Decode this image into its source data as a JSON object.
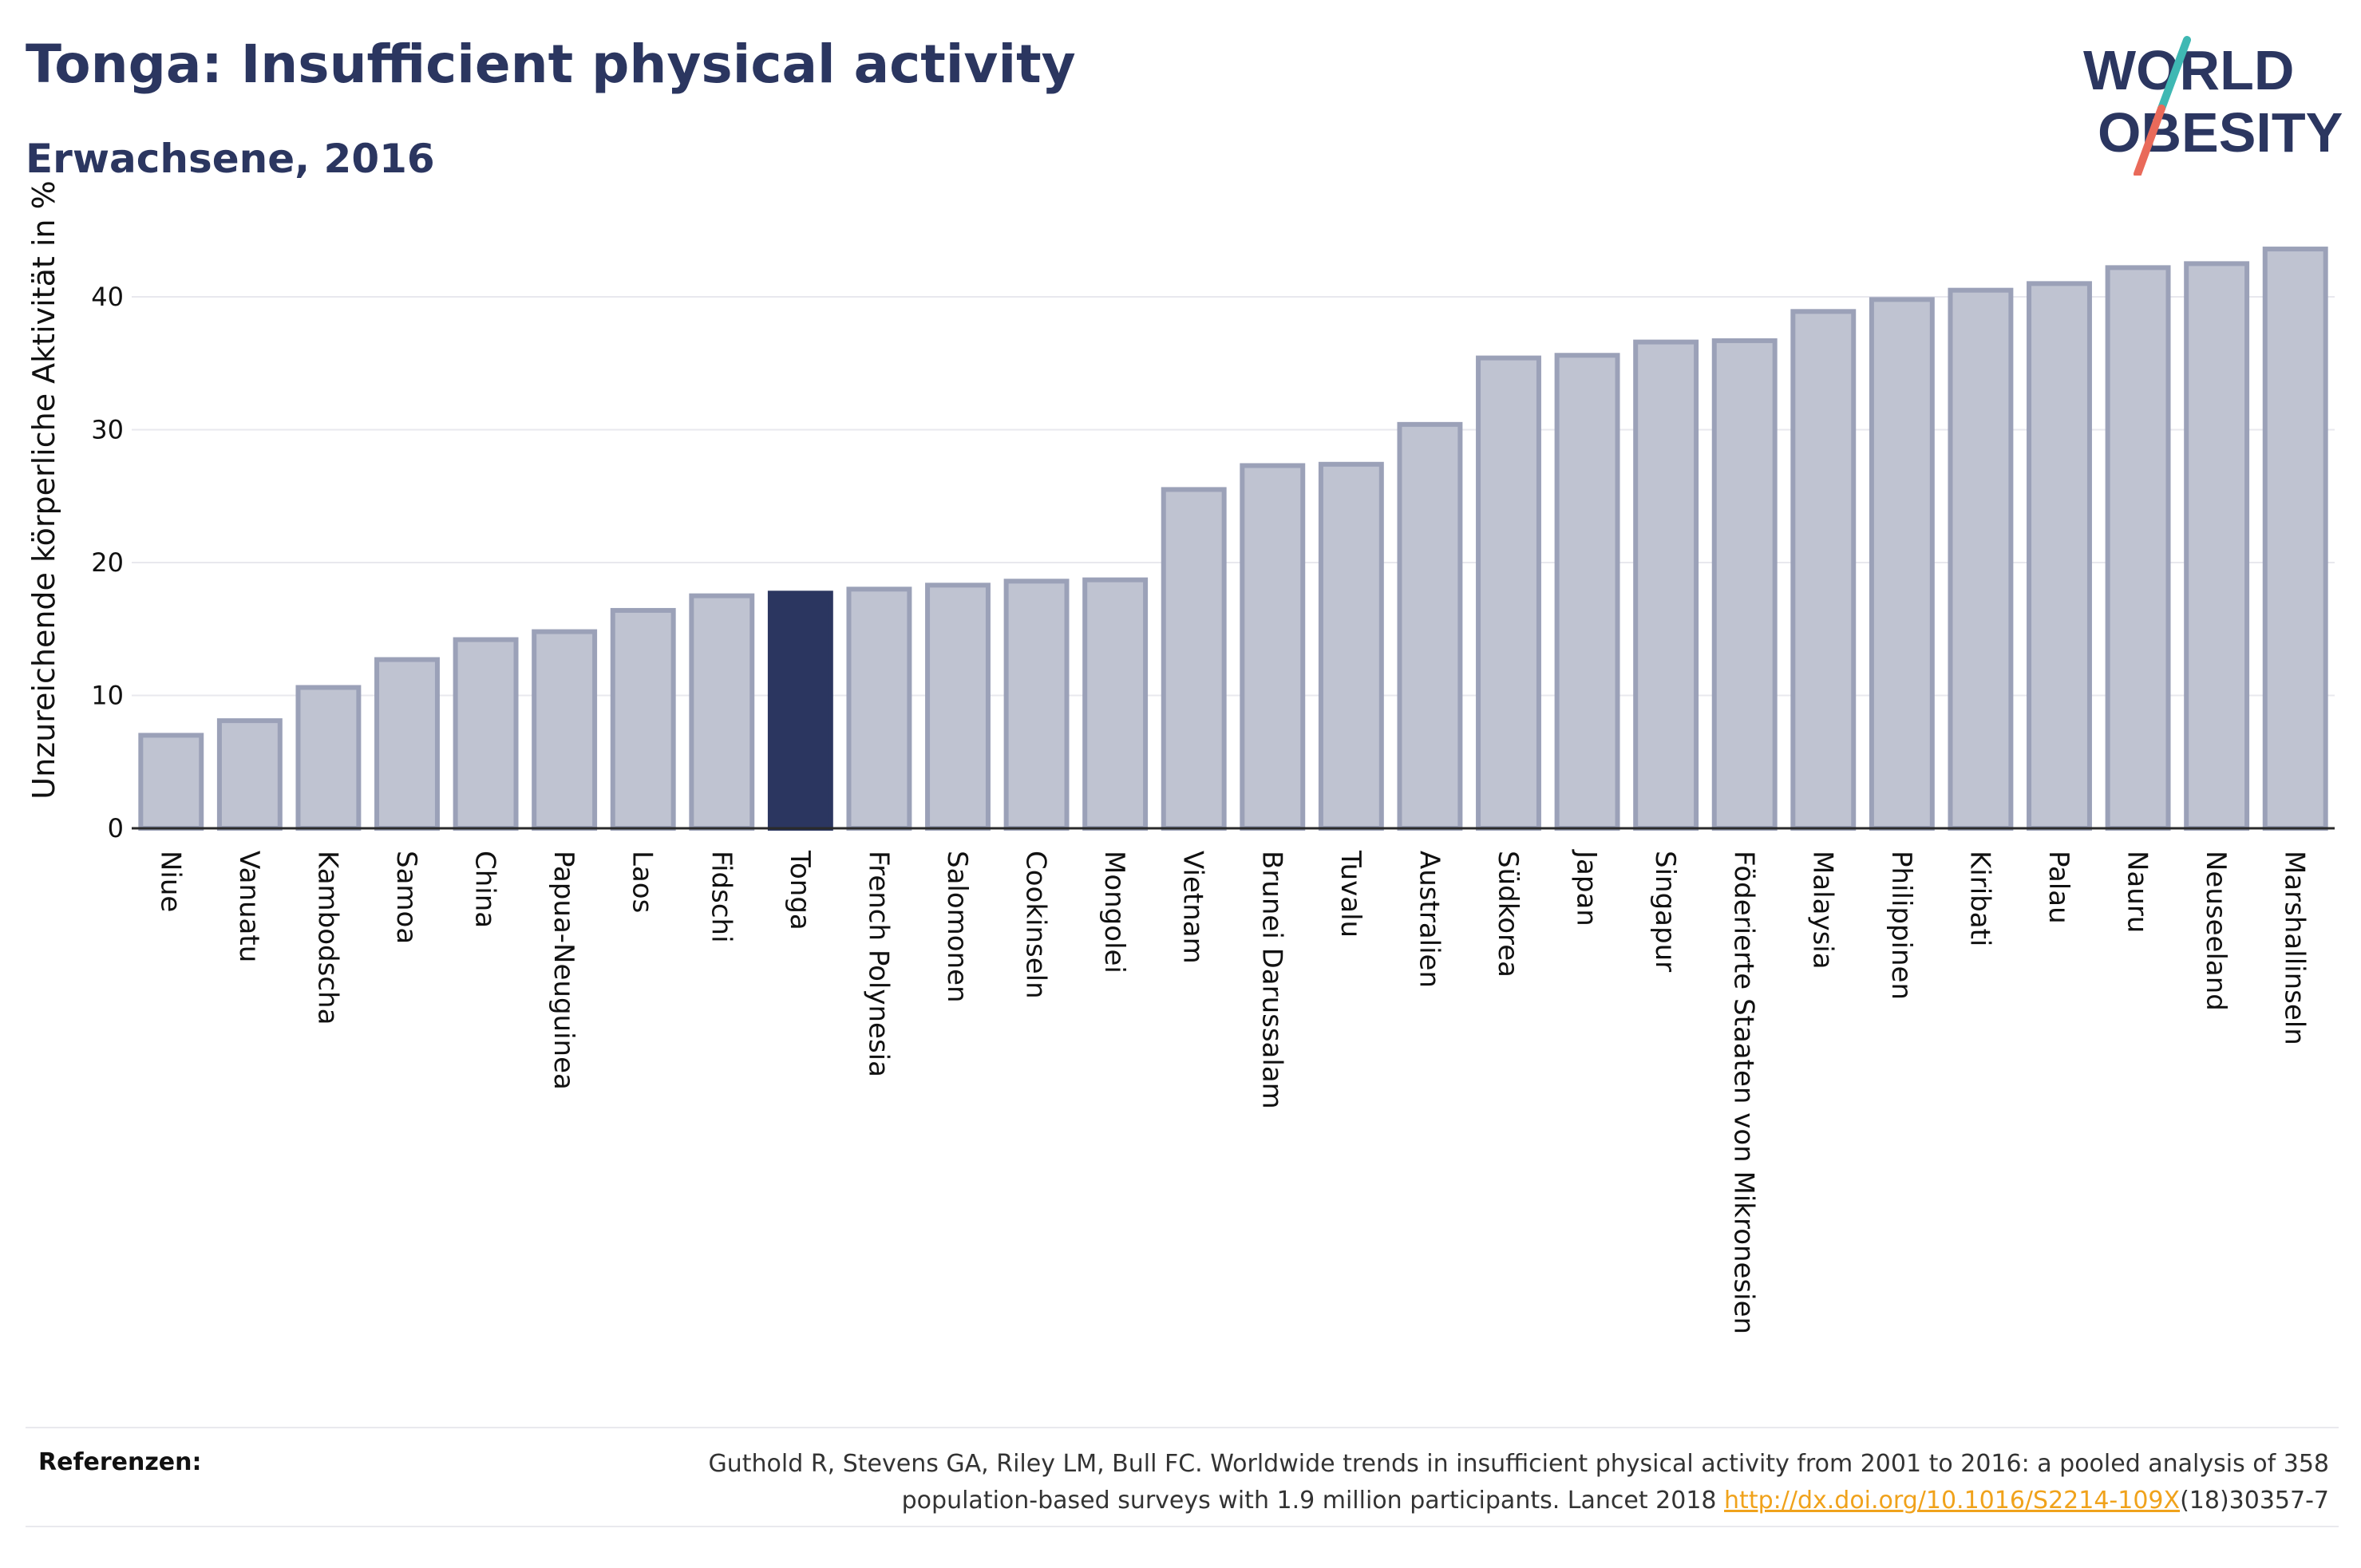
{
  "header": {
    "title": "Tonga: Insufficient physical activity",
    "subtitle": "Erwachsene, 2016"
  },
  "logo": {
    "line1": "WORLD",
    "line2": "OBESITY",
    "accent_teal": "#3fb8b3",
    "accent_coral": "#e96a5a"
  },
  "chart_data": {
    "type": "bar",
    "ylabel": "Unzureichende körperliche Aktivität in %",
    "xlabel": "",
    "ylim": [
      0,
      44
    ],
    "yticks": [
      0,
      10,
      20,
      30,
      40
    ],
    "grid": true,
    "highlight": "Tonga",
    "colors": {
      "bar": "#bfc3d1",
      "bar_border": "#9ba1b8",
      "highlight": "#2b3660"
    },
    "categories": [
      "Niue",
      "Vanuatu",
      "Kambodscha",
      "Samoa",
      "China",
      "Papua-Neuguinea",
      "Laos",
      "Fidschi",
      "Tonga",
      "French Polynesia",
      "Salomonen",
      "Cookinseln",
      "Mongolei",
      "Vietnam",
      "Brunei Darussalam",
      "Tuvalu",
      "Australien",
      "Südkorea",
      "Japan",
      "Singapur",
      "Föderierte Staaten von Mikronesien",
      "Malaysia",
      "Philippinen",
      "Kiribati",
      "Palau",
      "Nauru",
      "Neuseeland",
      "Marshallinseln"
    ],
    "values": [
      7.0,
      8.1,
      10.6,
      12.7,
      14.2,
      14.8,
      16.4,
      17.5,
      17.7,
      18.0,
      18.3,
      18.6,
      18.7,
      25.5,
      27.3,
      27.4,
      30.4,
      35.4,
      35.6,
      36.6,
      36.7,
      38.9,
      39.8,
      40.5,
      41.0,
      42.2,
      42.5,
      43.6
    ]
  },
  "references": {
    "label": "Referenzen:",
    "line1": "Guthold R, Stevens GA, Riley LM, Bull FC. Worldwide trends in insufficient physical activity from 2001 to 2016: a pooled analysis of 358",
    "line2_before": "population-based surveys with 1.9 million participants. Lancet 2018 ",
    "link": "http://dx.doi.org/10.1016/S2214-109X",
    "line2_after": "(18)30357-7"
  }
}
